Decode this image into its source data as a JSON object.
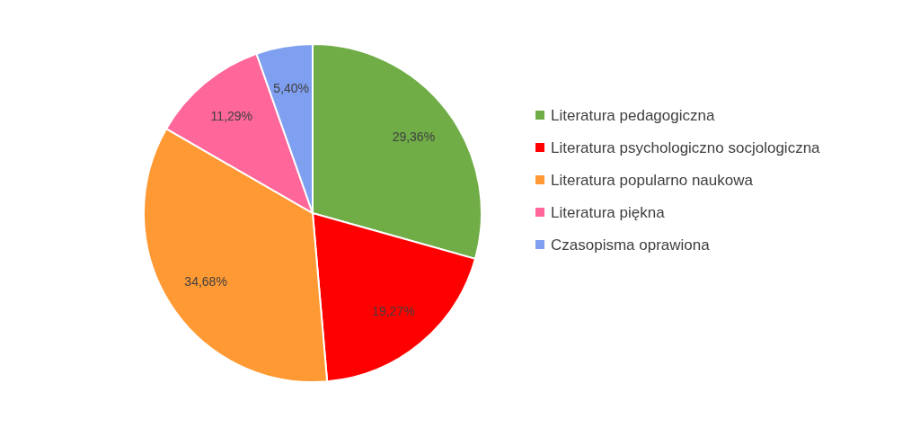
{
  "chart_data": {
    "type": "pie",
    "categories": [
      "Literatura pedagogiczna",
      "Literatura psychologiczno socjologiczna",
      "Literatura popularno naukowa",
      "Literatura piękna",
      "Czasopisma oprawiona"
    ],
    "values": [
      29.36,
      19.27,
      34.68,
      11.29,
      5.4
    ],
    "value_labels": [
      "29,36%",
      "19,27%",
      "34,68%",
      "11,29%",
      "5,40%"
    ],
    "colors": [
      "#70ad47",
      "#ff0000",
      "#ff9933",
      "#ff6699",
      "#7f9ff0"
    ],
    "legend": "right"
  }
}
